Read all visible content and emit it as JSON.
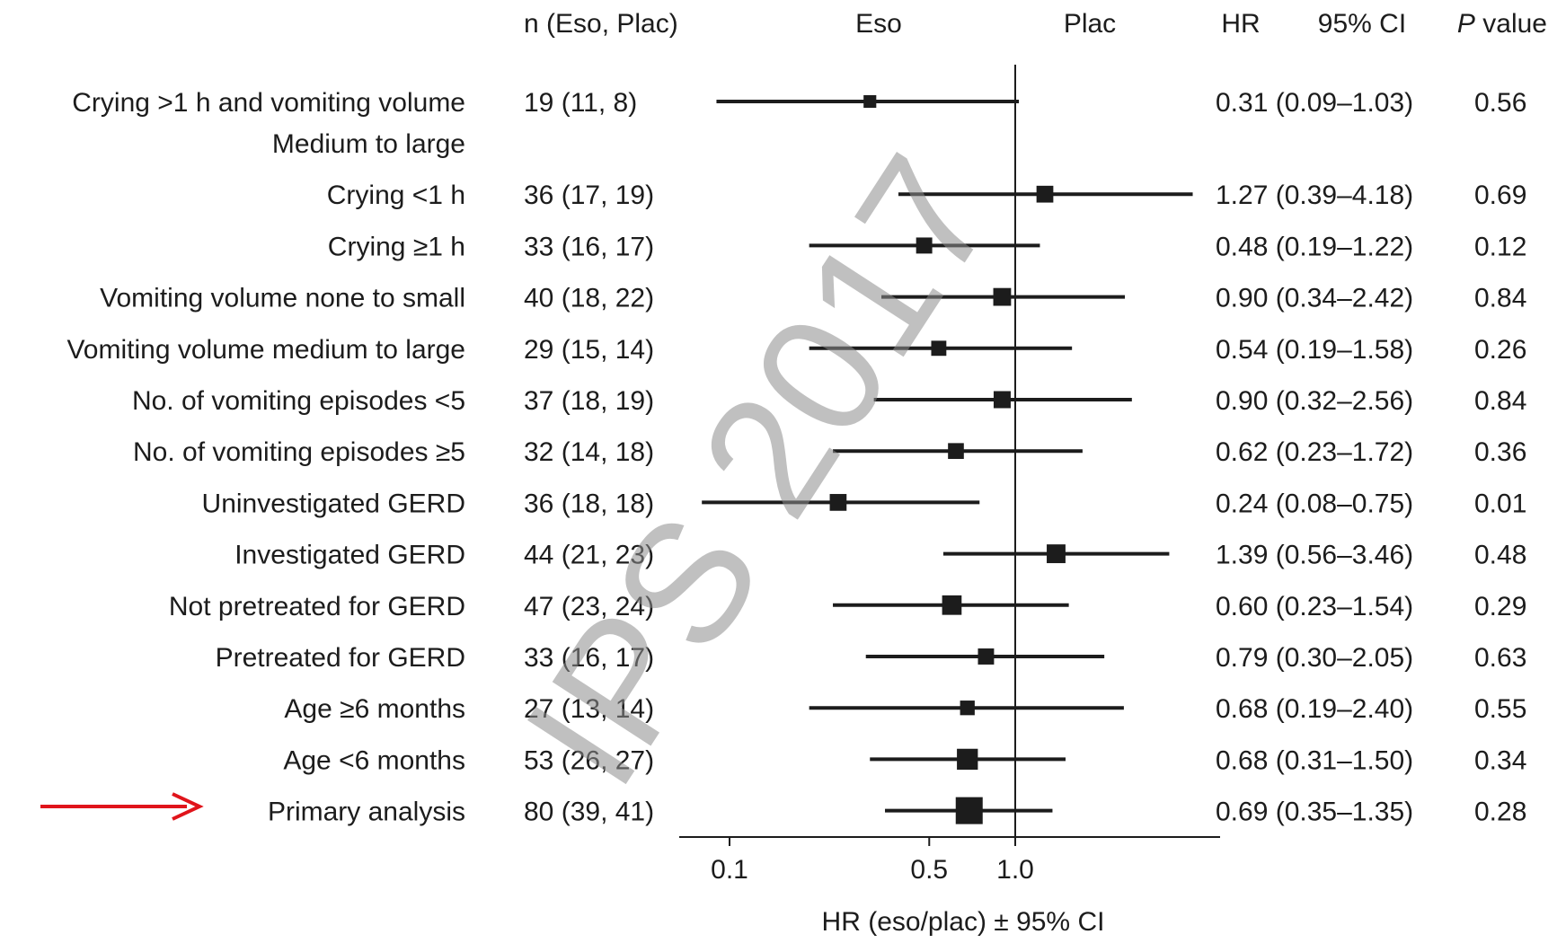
{
  "chart_data": {
    "type": "forest",
    "x_scale": "log",
    "xlabel": "HR (eso/plac) ± 95% CI",
    "reference_line": 1.0,
    "x_ticks": [
      {
        "value": 0.1,
        "label": "0.1"
      },
      {
        "value": 0.5,
        "label": "0.5"
      },
      {
        "value": 1.0,
        "label": "1.0"
      }
    ],
    "headers": {
      "n": "n (Eso, Plac)",
      "favors_left": "Eso",
      "favors_right": "Plac",
      "hr": "HR",
      "ci": "95% CI",
      "p_italic": "P",
      "p_rest": " value"
    },
    "rows": [
      {
        "label": "Crying >1 h and vomiting volume",
        "label_line2": "Medium to large",
        "n": "19 (11, 8)",
        "hr": 0.31,
        "lo": 0.09,
        "hi": 1.03,
        "hr_text": "0.31 (0.09–1.03)",
        "p": "0.56"
      },
      {
        "label": "Crying <1 h",
        "n": "36 (17, 19)",
        "hr": 1.27,
        "lo": 0.39,
        "hi": 4.18,
        "hr_text": "1.27 (0.39–4.18)",
        "p": "0.69"
      },
      {
        "label": "Crying ≥1 h",
        "n": "33 (16, 17)",
        "hr": 0.48,
        "lo": 0.19,
        "hi": 1.22,
        "hr_text": "0.48 (0.19–1.22)",
        "p": "0.12"
      },
      {
        "label": "Vomiting volume none to small",
        "n": "40 (18, 22)",
        "hr": 0.9,
        "lo": 0.34,
        "hi": 2.42,
        "hr_text": "0.90 (0.34–2.42)",
        "p": "0.84"
      },
      {
        "label": "Vomiting volume medium to large",
        "n": "29 (15, 14)",
        "hr": 0.54,
        "lo": 0.19,
        "hi": 1.58,
        "hr_text": "0.54 (0.19–1.58)",
        "p": "0.26"
      },
      {
        "label": "No. of vomiting episodes <5",
        "n": "37 (18, 19)",
        "hr": 0.9,
        "lo": 0.32,
        "hi": 2.56,
        "hr_text": "0.90 (0.32–2.56)",
        "p": "0.84"
      },
      {
        "label": "No. of vomiting episodes ≥5",
        "n": "32 (14, 18)",
        "hr": 0.62,
        "lo": 0.23,
        "hi": 1.72,
        "hr_text": "0.62 (0.23–1.72)",
        "p": "0.36"
      },
      {
        "label": "Uninvestigated GERD",
        "n": "36 (18, 18)",
        "hr": 0.24,
        "lo": 0.08,
        "hi": 0.75,
        "hr_text": "0.24 (0.08–0.75)",
        "p": "0.01"
      },
      {
        "label": "Investigated GERD",
        "n": "44 (21, 23)",
        "hr": 1.39,
        "lo": 0.56,
        "hi": 3.46,
        "hr_text": "1.39 (0.56–3.46)",
        "p": "0.48"
      },
      {
        "label": "Not pretreated for GERD",
        "n": "47 (23, 24)",
        "hr": 0.6,
        "lo": 0.23,
        "hi": 1.54,
        "hr_text": "0.60 (0.23–1.54)",
        "p": "0.29"
      },
      {
        "label": "Pretreated for GERD",
        "n": "33 (16, 17)",
        "hr": 0.79,
        "lo": 0.3,
        "hi": 2.05,
        "hr_text": "0.79 (0.30–2.05)",
        "p": "0.63"
      },
      {
        "label": "Age ≥6 months",
        "n": "27 (13, 14)",
        "hr": 0.68,
        "lo": 0.19,
        "hi": 2.4,
        "hr_text": "0.68 (0.19–2.40)",
        "p": "0.55"
      },
      {
        "label": "Age <6 months",
        "n": "53 (26, 27)",
        "hr": 0.68,
        "lo": 0.31,
        "hi": 1.5,
        "hr_text": "0.68 (0.31–1.50)",
        "p": "0.34"
      },
      {
        "label": "Primary analysis",
        "n": "80 (39, 41)",
        "hr": 0.69,
        "lo": 0.35,
        "hi": 1.35,
        "hr_text": "0.69 (0.35–1.35)",
        "p": "0.28",
        "highlighted": true
      }
    ]
  },
  "watermark": "IPS 2017",
  "colors": {
    "ink": "#1c1c1c",
    "arrow": "#e0141b",
    "watermark": "#8e8e8e"
  }
}
